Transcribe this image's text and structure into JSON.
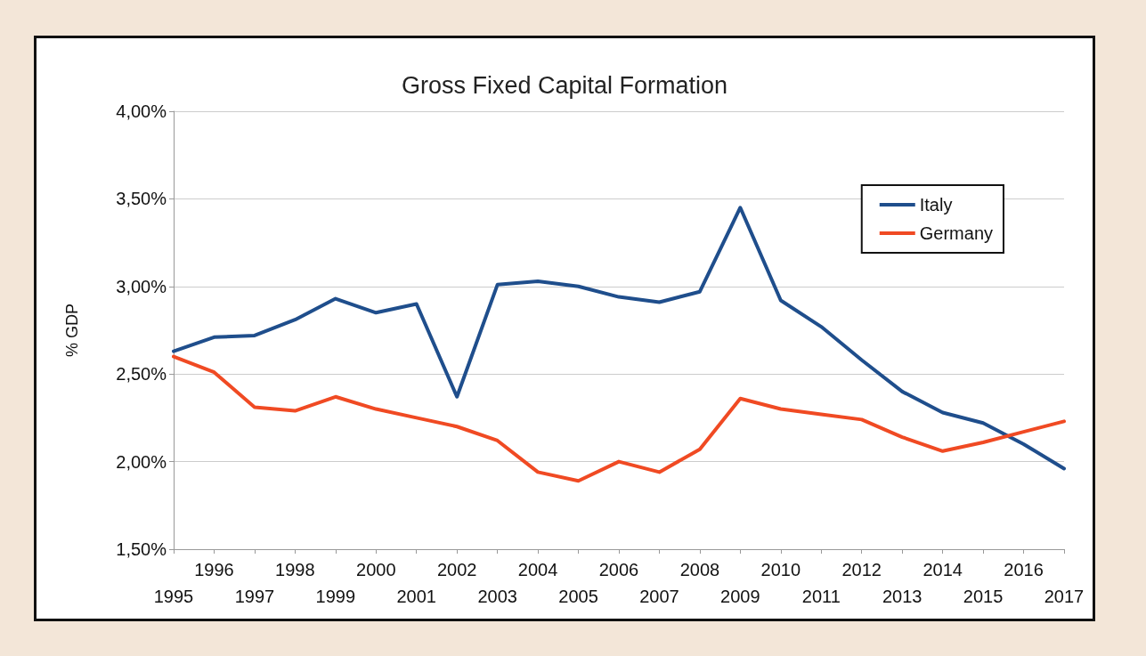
{
  "chart_data": {
    "type": "line",
    "title": "Gross Fixed Capital Formation",
    "ylabel": "% GDP",
    "categories": [
      "1995",
      "1996",
      "1997",
      "1998",
      "1999",
      "2000",
      "2001",
      "2002",
      "2003",
      "2004",
      "2005",
      "2006",
      "2007",
      "2008",
      "2009",
      "2010",
      "2011",
      "2012",
      "2013",
      "2014",
      "2015",
      "2016",
      "2017"
    ],
    "series": [
      {
        "name": "Italy",
        "color": "#1f4e8c",
        "values": [
          2.63,
          2.71,
          2.72,
          2.81,
          2.93,
          2.85,
          2.9,
          2.37,
          3.01,
          3.03,
          3.0,
          2.94,
          2.91,
          2.97,
          3.45,
          2.92,
          2.77,
          2.58,
          2.4,
          2.28,
          2.22,
          2.1,
          1.96
        ]
      },
      {
        "name": "Germany",
        "color": "#f04a23",
        "values": [
          2.6,
          2.51,
          2.31,
          2.29,
          2.37,
          2.3,
          2.25,
          2.2,
          2.12,
          1.94,
          1.89,
          2.0,
          1.94,
          2.07,
          2.36,
          2.3,
          2.27,
          2.24,
          2.14,
          2.06,
          2.11,
          2.17,
          2.23
        ]
      }
    ],
    "ylim": [
      1.5,
      4.0
    ],
    "yticks": [
      {
        "value": 1.5,
        "label": "1,50%"
      },
      {
        "value": 2.0,
        "label": "2,00%"
      },
      {
        "value": 2.5,
        "label": "2,50%"
      },
      {
        "value": 3.0,
        "label": "3,00%"
      },
      {
        "value": 3.5,
        "label": "3,50%"
      },
      {
        "value": 4.0,
        "label": "4,00%"
      }
    ],
    "grid": "y",
    "legend": "top right",
    "marker": "none",
    "line_style": "solid"
  }
}
